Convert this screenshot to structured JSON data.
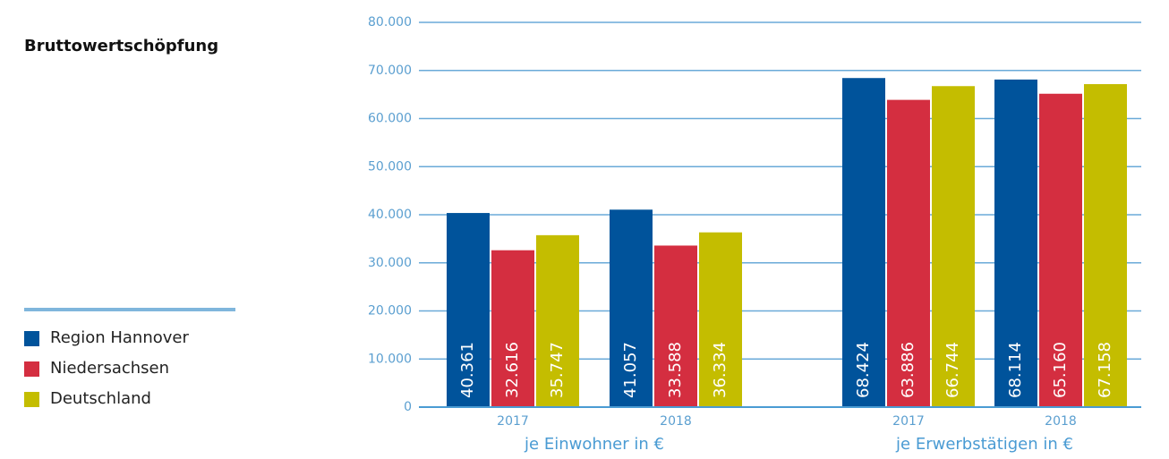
{
  "chart_data": {
    "type": "bar",
    "title": "Bruttowertschöpfung",
    "categories": [
      "2017",
      "2018",
      "2017",
      "2018"
    ],
    "groups": [
      "je Einwohner in €",
      "je Erwerbstätigen in €"
    ],
    "series": [
      {
        "name": "Region Hannover",
        "color": "#00539b",
        "values": [
          40361,
          41057,
          68424,
          68114
        ],
        "value_labels": [
          "40.361",
          "41.057",
          "68.424",
          "68.114"
        ]
      },
      {
        "name": "Niedersachsen",
        "color": "#d42e40",
        "values": [
          32616,
          33588,
          63886,
          65160
        ],
        "value_labels": [
          "32.616",
          "33.588",
          "63.886",
          "65.160"
        ]
      },
      {
        "name": "Deutschland",
        "color": "#c4bd00",
        "values": [
          35747,
          36334,
          66744,
          67158
        ],
        "value_labels": [
          "35.747",
          "36.334",
          "66.744",
          "67.158"
        ]
      }
    ],
    "ylim": [
      0,
      80000
    ],
    "yticks": [
      0,
      {
        "value": 10000,
        "label": "10.000"
      },
      {
        "value": 20000,
        "label": "20.000"
      },
      {
        "value": 30000,
        "label": "30.000"
      },
      {
        "value": 40000,
        "label": "40.000"
      },
      {
        "value": 50000,
        "label": "50.000"
      },
      {
        "value": 60000,
        "label": "60.000"
      },
      {
        "value": 70000,
        "label": "70.000"
      },
      {
        "value": 80000,
        "label": "80.000"
      }
    ],
    "grid": true
  }
}
